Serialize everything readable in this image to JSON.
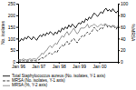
{
  "chart_data": {
    "type": "line",
    "ylabel": "No. isolates",
    "y2label": "%MRSA",
    "categories": [
      "Jan 96",
      null,
      null,
      null,
      null,
      null,
      null,
      null,
      null,
      null,
      null,
      null,
      "Jan 97",
      null,
      null,
      null,
      null,
      null,
      null,
      null,
      null,
      null,
      null,
      null,
      "Jan 98",
      null,
      null,
      null,
      null,
      null,
      null,
      null,
      null,
      null,
      null,
      null,
      "Jan 99",
      null,
      null,
      null,
      null,
      null,
      null,
      null,
      null,
      null,
      null,
      null,
      "Jan 00",
      null,
      null,
      null,
      null,
      null,
      null,
      null,
      null,
      null,
      null,
      null
    ],
    "ylim": [
      0,
      250
    ],
    "yticks": [
      0,
      50,
      100,
      150,
      200,
      250
    ],
    "y2lim": [
      0,
      100
    ],
    "y2ticks": [
      0,
      20,
      40,
      60,
      80,
      100
    ],
    "grid": false,
    "legend": "bottom",
    "series": [
      {
        "name": "Total Staphylococcus aureus (No. isolates, Y-1 axis)",
        "color": "#000000",
        "line_style": "solid",
        "axis": "y",
        "values": [
          95,
          88,
          100,
          92,
          105,
          98,
          110,
          102,
          95,
          108,
          100,
          93,
          105,
          115,
          108,
          120,
          112,
          125,
          118,
          130,
          122,
          115,
          128,
          120,
          135,
          128,
          145,
          138,
          150,
          142,
          158,
          148,
          162,
          155,
          145,
          158,
          168,
          162,
          175,
          168,
          185,
          178,
          192,
          185,
          198,
          210,
          202,
          195,
          205,
          215,
          208,
          222,
          230,
          218,
          225,
          215,
          228,
          218,
          210,
          220
        ]
      },
      {
        "name": "MRSA (No. isolates, Y-1 axis)",
        "color": "#333333",
        "line_style": "dashed",
        "axis": "y",
        "values": [
          3,
          4,
          3,
          5,
          4,
          3,
          4,
          5,
          4,
          6,
          5,
          4,
          8,
          12,
          18,
          15,
          22,
          28,
          35,
          40,
          32,
          38,
          45,
          40,
          55,
          62,
          72,
          65,
          80,
          88,
          75,
          85,
          95,
          100,
          88,
          82,
          95,
          105,
          112,
          108,
          120,
          128,
          118,
          125,
          135,
          148,
          140,
          132,
          138,
          148,
          142,
          155,
          162,
          148,
          155,
          145,
          158,
          148,
          140,
          150
        ]
      },
      {
        "name": "MRSA (%, Y-2 axis)",
        "color": "#888888",
        "line_style": "solid",
        "axis": "y2",
        "values": [
          3,
          4,
          3,
          5,
          4,
          3,
          4,
          5,
          4,
          5,
          5,
          4,
          8,
          10,
          15,
          13,
          18,
          20,
          25,
          28,
          24,
          28,
          32,
          30,
          36,
          40,
          45,
          42,
          48,
          52,
          46,
          50,
          54,
          58,
          52,
          48,
          52,
          58,
          58,
          58,
          60,
          65,
          58,
          62,
          62,
          65,
          62,
          60,
          62,
          65,
          62,
          65,
          65,
          62,
          62,
          60,
          62,
          62,
          58,
          62
        ]
      }
    ]
  }
}
